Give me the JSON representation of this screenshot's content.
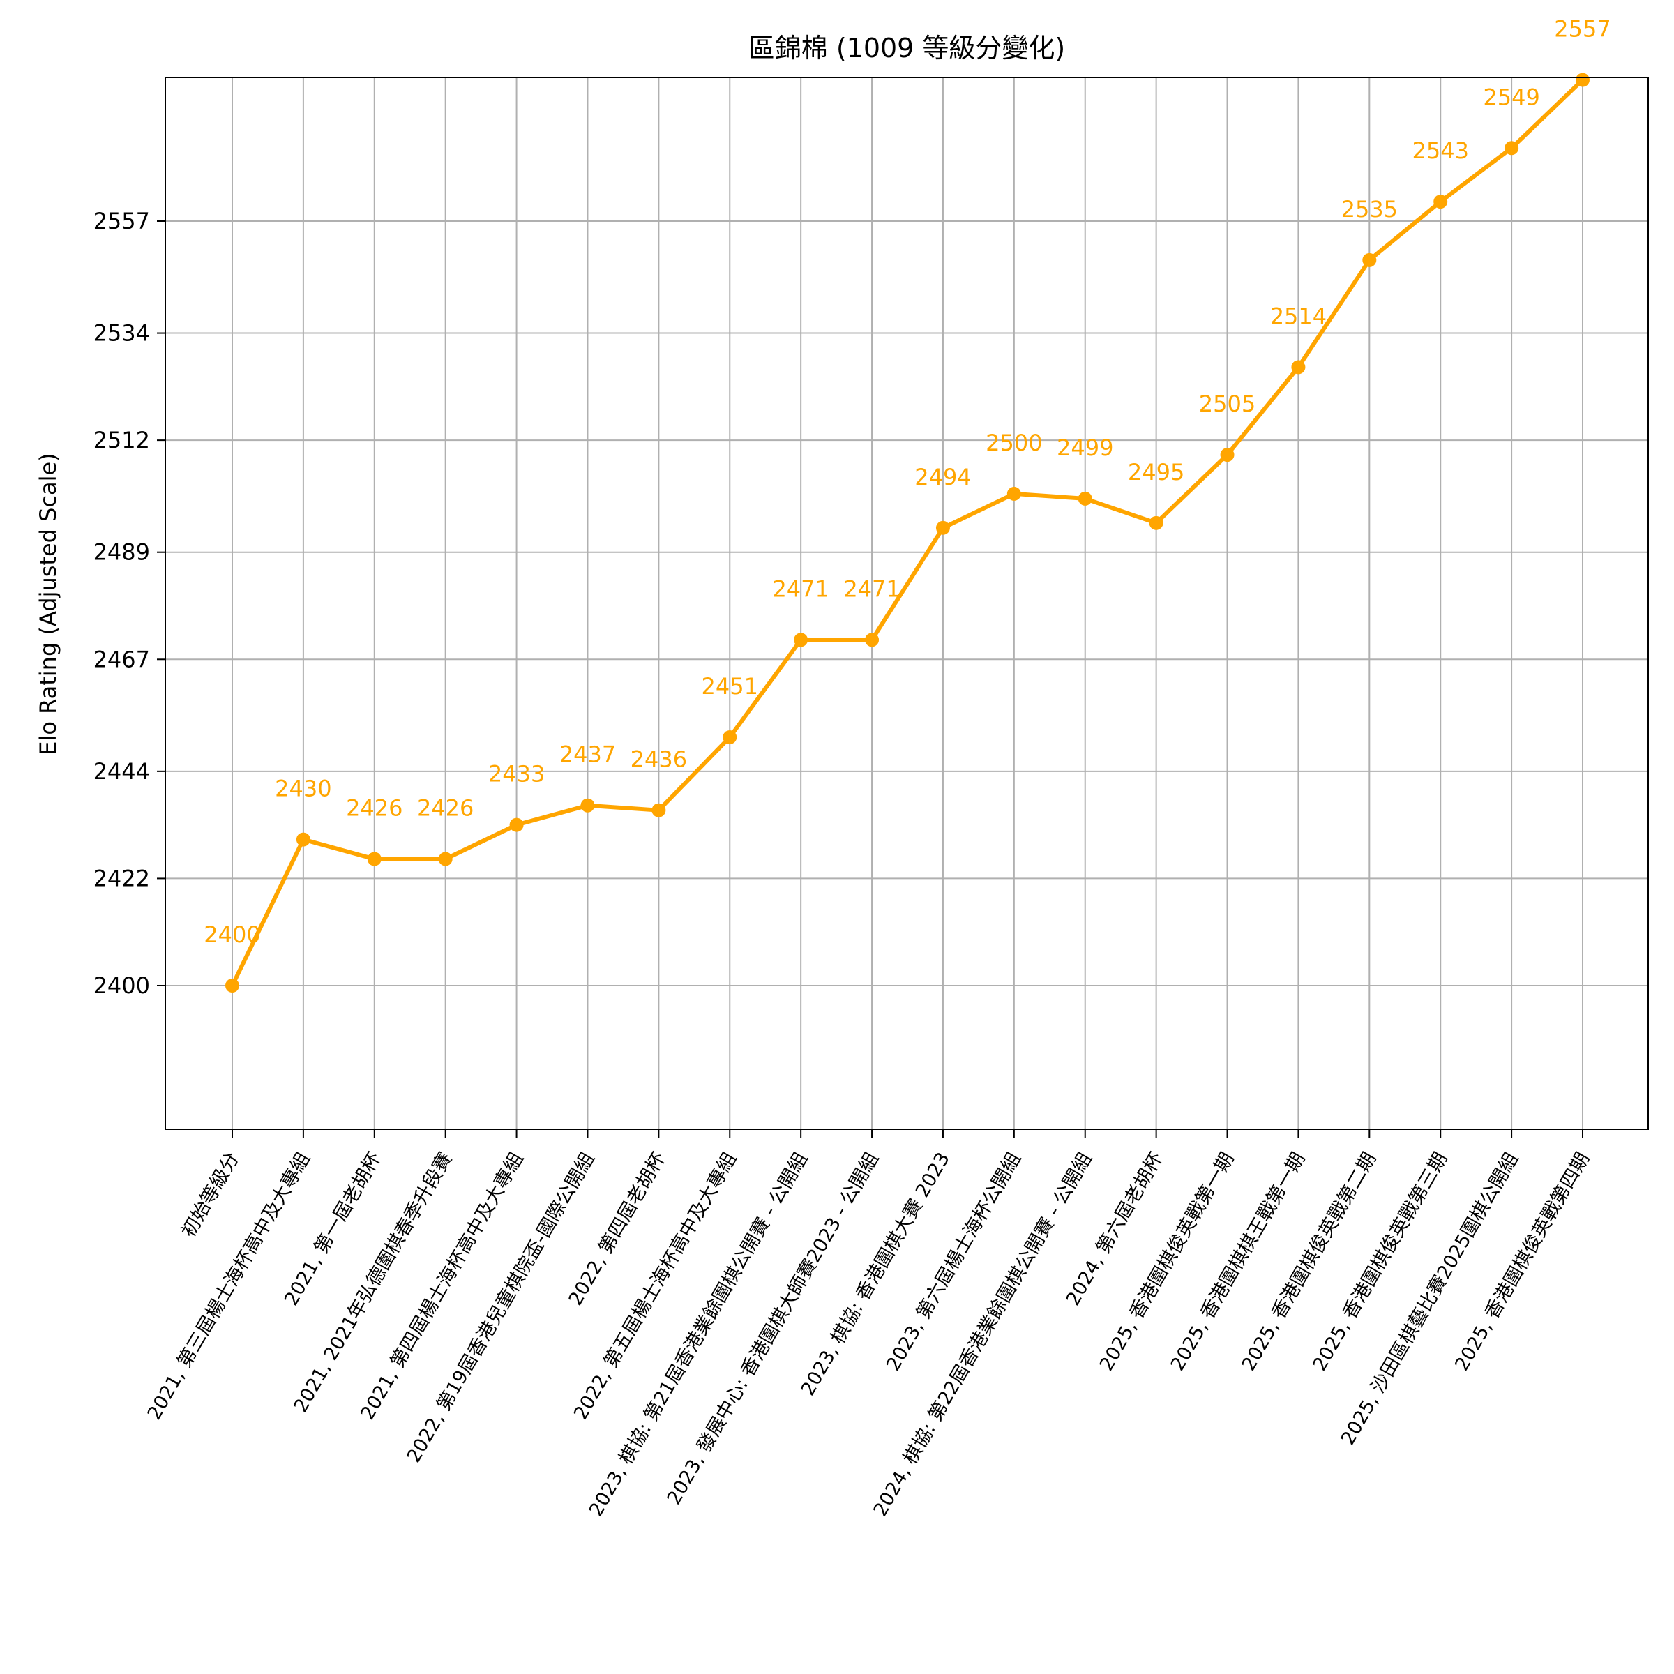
{
  "chart_data": {
    "type": "line",
    "title": "區錦棉 (1009 等級分變化)",
    "xlabel": "",
    "ylabel": "Elo Rating (Adjusted Scale)",
    "ylim": [
      2381,
      2590
    ],
    "yticks": [
      2400,
      2422,
      2444,
      2467,
      2489,
      2512,
      2534,
      2557
    ],
    "grid": true,
    "color": "#FFA500",
    "categories": [
      "初始等級分",
      "2021, 第三屆楊士海杯高中及大專組",
      "2021, 第一屆老胡杯",
      "2021, 2021年弘德圍棋春季升段賽",
      "2021, 第四屆楊士海杯高中及大專組",
      "2022, 第19屆香港兒童棋院盃-國際公開組",
      "2022, 第四屆老胡杯",
      "2022, 第五屆楊士海杯高中及大專組",
      "2023, 棋協: 第21屆香港業餘圍棋公開賽 - 公開組",
      "2023, 發展中心: 香港圍棋大師賽2023 - 公開組",
      "2023, 棋協: 香港圍棋大賽 2023",
      "2023, 第六屆楊士海杯公開組",
      "2024, 棋協: 第22屆香港業餘圍棋公開賽 - 公開組",
      "2024, 第六屆老胡杯",
      "2025, 香港圍棋俊英戰第一期",
      "2025, 香港圍棋棋王戰第一期",
      "2025, 香港圍棋俊英戰第二期",
      "2025, 香港圍棋俊英戰第三期",
      "2025, 沙田區棋藝比賽2025圍棋公開組",
      "2025, 香港圍棋俊英戰第四期"
    ],
    "series": [
      {
        "values": [
          2400,
          2430,
          2426,
          2426,
          2433,
          2437,
          2436,
          2451,
          2471,
          2471,
          2494,
          2500,
          2499,
          2495,
          2505,
          2514,
          2535,
          2543,
          2549,
          2557
        ]
      }
    ],
    "plot_values": [
      2400,
      2430,
      2426,
      2426,
      2433,
      2437,
      2436,
      2451,
      2471,
      2471,
      2494,
      2501,
      2500,
      2495,
      2509,
      2527,
      2549,
      2561,
      2572,
      2586
    ]
  }
}
